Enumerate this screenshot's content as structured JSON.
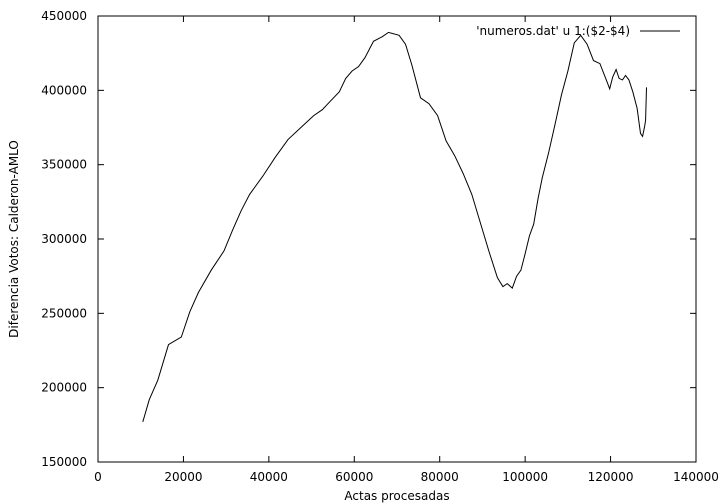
{
  "chart_data": {
    "type": "line",
    "xlabel": "Actas procesadas",
    "ylabel": "Diferencia Votos: Calderon-AMLO",
    "xlim": [
      0,
      140000
    ],
    "ylim": [
      150000,
      450000
    ],
    "x_ticks": [
      0,
      20000,
      40000,
      60000,
      80000,
      100000,
      120000,
      140000
    ],
    "y_ticks": [
      150000,
      200000,
      250000,
      300000,
      350000,
      400000,
      450000
    ],
    "x_tick_labels": [
      "0",
      "20000",
      "40000",
      "60000",
      "80000",
      "100000",
      "120000",
      "140000"
    ],
    "y_tick_labels": [
      "150000",
      "200000",
      "250000",
      "300000",
      "350000",
      "400000",
      "450000"
    ],
    "legend_position": "top-right",
    "grid": false,
    "line_color": "#000000",
    "series": [
      {
        "name": "'numeros.dat' u 1:($2-$4)",
        "x": [
          10500,
          12000,
          14000,
          16500,
          19500,
          21500,
          23500,
          26500,
          29500,
          31500,
          33500,
          35500,
          38500,
          41500,
          44500,
          47500,
          50500,
          52500,
          54500,
          56500,
          58000,
          59500,
          61000,
          62500,
          64500,
          66500,
          68000,
          70500,
          72000,
          73500,
          75500,
          77500,
          79500,
          81500,
          83500,
          85500,
          87500,
          89500,
          91500,
          93500,
          94800,
          95800,
          97000,
          98000,
          99000,
          100000,
          101000,
          102000,
          103000,
          104000,
          105500,
          107000,
          108500,
          110000,
          111500,
          113000,
          114500,
          116000,
          117500,
          119000,
          119800,
          120500,
          121300,
          122000,
          122800,
          123500,
          124300,
          125200,
          126200,
          127000,
          127500,
          128000,
          128200,
          128400
        ],
        "values": [
          177000,
          192000,
          205000,
          229000,
          234000,
          251000,
          264000,
          279000,
          292000,
          306000,
          319000,
          330000,
          342000,
          355000,
          367000,
          375000,
          383000,
          387000,
          393000,
          399000,
          408000,
          413000,
          416000,
          422000,
          433000,
          436000,
          439000,
          437000,
          431000,
          417000,
          395000,
          391000,
          383000,
          366000,
          356000,
          344000,
          330000,
          311000,
          292000,
          274000,
          268000,
          270000,
          267000,
          275000,
          279000,
          290000,
          302000,
          310000,
          327000,
          341000,
          358000,
          377000,
          397000,
          413000,
          432000,
          437000,
          431000,
          420000,
          418000,
          407000,
          401000,
          409000,
          414000,
          408000,
          407000,
          410000,
          407000,
          399000,
          388000,
          371000,
          369000,
          376000,
          380000,
          402000
        ]
      }
    ]
  }
}
